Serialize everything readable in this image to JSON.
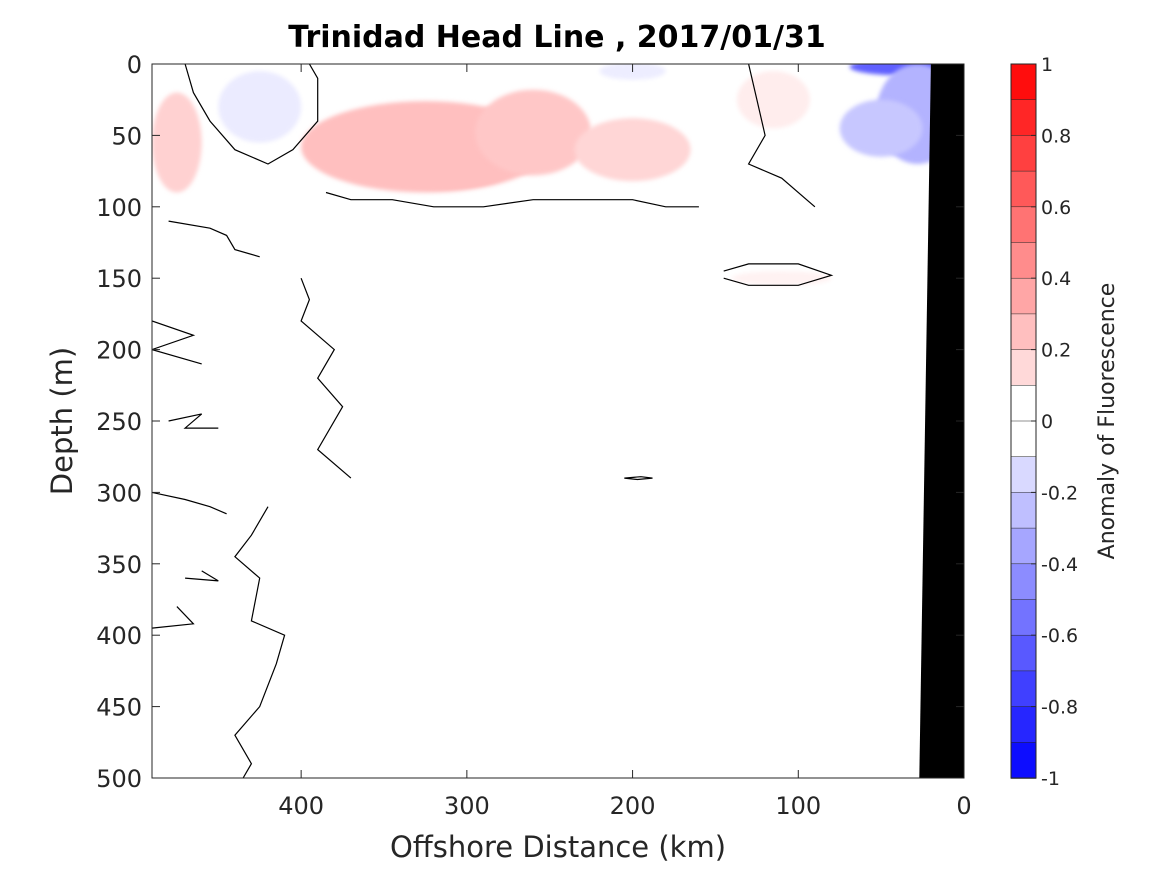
{
  "chart_data": {
    "type": "contour",
    "title": "Trinidad Head Line , 2017/01/31",
    "xlabel": "Offshore Distance (km)",
    "ylabel": "Depth (m)",
    "xlim": [
      490,
      0
    ],
    "ylim": [
      0,
      500
    ],
    "x_reversed": true,
    "y_reversed": true,
    "xticks": [
      400,
      300,
      200,
      100,
      0
    ],
    "xtick_labels": [
      "400",
      "300",
      "200",
      "100",
      "0"
    ],
    "yticks": [
      0,
      50,
      100,
      150,
      200,
      250,
      300,
      350,
      400,
      450,
      500
    ],
    "ytick_labels": [
      "0",
      "50",
      "100",
      "150",
      "200",
      "250",
      "300",
      "350",
      "400",
      "450",
      "500"
    ],
    "colorbar": {
      "label": "Anomaly of Fluorescence",
      "range": [
        -1,
        1
      ],
      "levels_step": 0.1,
      "ticks": [
        1,
        0.8,
        0.6,
        0.4,
        0.2,
        0,
        -0.2,
        -0.4,
        -0.6,
        -0.8,
        -1
      ],
      "tick_labels": [
        "1",
        "0.8",
        "0.6",
        "0.4",
        "0.2",
        "0",
        "-0.2",
        "-0.4",
        "-0.6",
        "-0.8",
        "-1"
      ],
      "colormap": "blue-white-red"
    },
    "anomalies": [
      {
        "x": 315,
        "y": 70,
        "value": 0.4,
        "rx": 45,
        "ry": 17
      },
      {
        "x": 325,
        "y": 58,
        "value": 0.25,
        "rx": 75,
        "ry": 32
      },
      {
        "x": 260,
        "y": 48,
        "value": 0.22,
        "rx": 35,
        "ry": 30
      },
      {
        "x": 200,
        "y": 60,
        "value": 0.16,
        "rx": 35,
        "ry": 22
      },
      {
        "x": 475,
        "y": 55,
        "value": 0.18,
        "rx": 15,
        "ry": 35
      },
      {
        "x": 115,
        "y": 25,
        "value": 0.07,
        "rx": 22,
        "ry": 20
      },
      {
        "x": 110,
        "y": 150,
        "value": 0.05,
        "rx": 30,
        "ry": 5
      },
      {
        "x": 425,
        "y": 30,
        "value": -0.08,
        "rx": 25,
        "ry": 25
      },
      {
        "x": 200,
        "y": 5,
        "value": -0.07,
        "rx": 20,
        "ry": 6
      },
      {
        "x": 37,
        "y": 2,
        "value": -0.62,
        "rx": 32,
        "ry": 6
      },
      {
        "x": 28,
        "y": 35,
        "value": -0.3,
        "rx": 25,
        "ry": 35
      },
      {
        "x": 50,
        "y": 45,
        "value": -0.22,
        "rx": 25,
        "ry": 20
      }
    ],
    "zero_contours": [
      [
        [
          480,
          110
        ],
        [
          455,
          115
        ],
        [
          445,
          120
        ],
        [
          440,
          130
        ],
        [
          425,
          135
        ]
      ],
      [
        [
          385,
          90
        ],
        [
          370,
          95
        ],
        [
          345,
          95
        ],
        [
          320,
          100
        ],
        [
          290,
          100
        ],
        [
          260,
          95
        ],
        [
          230,
          95
        ],
        [
          200,
          95
        ],
        [
          180,
          100
        ],
        [
          160,
          100
        ]
      ],
      [
        [
          400,
          150
        ],
        [
          395,
          165
        ],
        [
          400,
          180
        ],
        [
          380,
          200
        ],
        [
          390,
          220
        ],
        [
          375,
          240
        ],
        [
          390,
          270
        ],
        [
          370,
          290
        ]
      ],
      [
        [
          490,
          180
        ],
        [
          465,
          190
        ],
        [
          490,
          200
        ],
        [
          460,
          210
        ]
      ],
      [
        [
          480,
          250
        ],
        [
          460,
          245
        ],
        [
          470,
          255
        ],
        [
          450,
          255
        ]
      ],
      [
        [
          490,
          300
        ],
        [
          470,
          305
        ],
        [
          455,
          310
        ],
        [
          445,
          315
        ]
      ],
      [
        [
          460,
          355
        ],
        [
          450,
          362
        ],
        [
          470,
          360
        ]
      ],
      [
        [
          420,
          310
        ],
        [
          430,
          330
        ],
        [
          440,
          345
        ],
        [
          425,
          360
        ],
        [
          430,
          390
        ],
        [
          410,
          400
        ],
        [
          415,
          420
        ],
        [
          425,
          450
        ],
        [
          440,
          470
        ],
        [
          430,
          490
        ],
        [
          435,
          500
        ]
      ],
      [
        [
          475,
          380
        ],
        [
          465,
          392
        ],
        [
          490,
          395
        ]
      ],
      [
        [
          145,
          145
        ],
        [
          130,
          140
        ],
        [
          100,
          140
        ],
        [
          80,
          148
        ],
        [
          100,
          155
        ],
        [
          130,
          155
        ],
        [
          145,
          150
        ]
      ],
      [
        [
          205,
          290
        ],
        [
          195,
          289
        ],
        [
          188,
          290
        ],
        [
          197,
          291
        ],
        [
          205,
          290
        ]
      ],
      [
        [
          130,
          0
        ],
        [
          125,
          25
        ],
        [
          120,
          50
        ],
        [
          130,
          70
        ],
        [
          110,
          80
        ],
        [
          95,
          95
        ],
        [
          90,
          100
        ]
      ],
      [
        [
          470,
          0
        ],
        [
          465,
          20
        ],
        [
          455,
          40
        ],
        [
          440,
          60
        ],
        [
          420,
          70
        ],
        [
          405,
          60
        ],
        [
          390,
          40
        ],
        [
          390,
          10
        ],
        [
          395,
          0
        ]
      ]
    ],
    "seafloor": [
      [
        20,
        0
      ],
      [
        27,
        500
      ],
      [
        0,
        500
      ],
      [
        0,
        0
      ]
    ]
  }
}
